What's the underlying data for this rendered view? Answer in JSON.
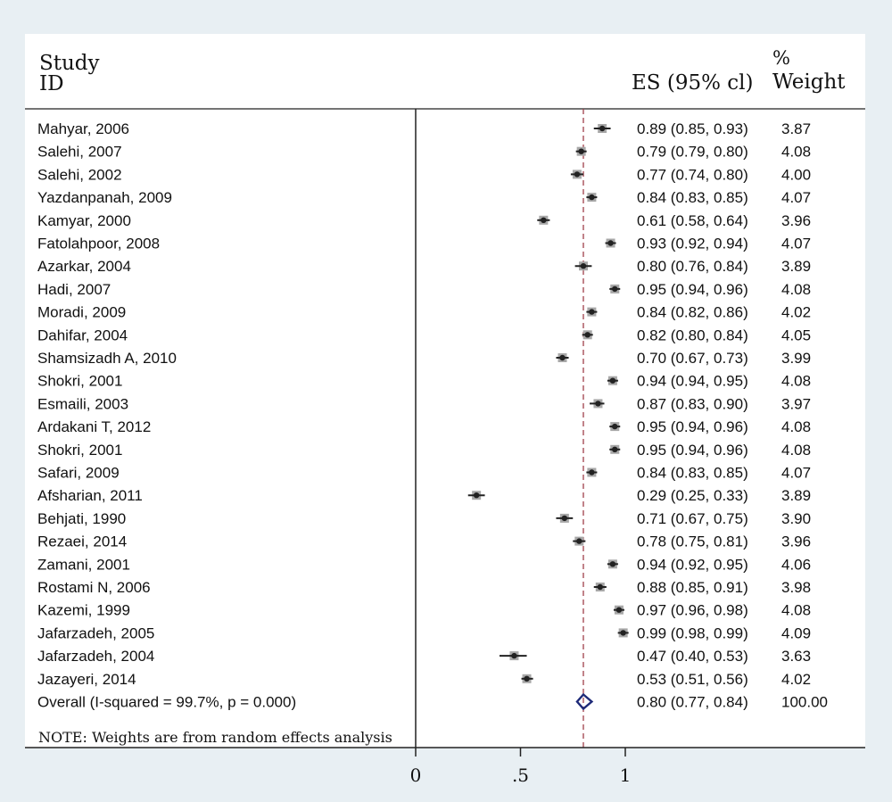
{
  "header": {
    "study_line1": "Study",
    "study_line2": "ID",
    "es_label": "ES (95% cl)",
    "weight_line1": "%",
    "weight_line2": "Weight"
  },
  "note": "NOTE: Weights are from random effects analysis",
  "colors": {
    "background": "#e8eff3",
    "panel": "#ffffff",
    "point": "#222222",
    "weight_box": "#a8a8a8",
    "overall_line": "#a0404a",
    "diamond": "#1e2a78"
  },
  "chart_data": {
    "type": "forest",
    "x_ticks": [
      "0",
      ".5",
      "1"
    ],
    "x_tick_values": [
      0,
      0.5,
      1
    ],
    "overall_es_line": 0.8,
    "studies": [
      {
        "label": "Mahyar, 2006",
        "es": 0.89,
        "lo": 0.85,
        "hi": 0.93,
        "es_text": "0.89 (0.85, 0.93)",
        "weight": "3.87"
      },
      {
        "label": "Salehi, 2007",
        "es": 0.79,
        "lo": 0.79,
        "hi": 0.8,
        "es_text": "0.79 (0.79, 0.80)",
        "weight": "4.08"
      },
      {
        "label": "Salehi, 2002",
        "es": 0.77,
        "lo": 0.74,
        "hi": 0.8,
        "es_text": "0.77 (0.74, 0.80)",
        "weight": "4.00"
      },
      {
        "label": "Yazdanpanah, 2009",
        "es": 0.84,
        "lo": 0.83,
        "hi": 0.85,
        "es_text": "0.84 (0.83, 0.85)",
        "weight": "4.07"
      },
      {
        "label": "Kamyar, 2000",
        "es": 0.61,
        "lo": 0.58,
        "hi": 0.64,
        "es_text": "0.61 (0.58, 0.64)",
        "weight": "3.96"
      },
      {
        "label": "Fatolahpoor, 2008",
        "es": 0.93,
        "lo": 0.92,
        "hi": 0.94,
        "es_text": "0.93 (0.92, 0.94)",
        "weight": "4.07"
      },
      {
        "label": "Azarkar, 2004",
        "es": 0.8,
        "lo": 0.76,
        "hi": 0.84,
        "es_text": "0.80 (0.76, 0.84)",
        "weight": "3.89"
      },
      {
        "label": "Hadi, 2007",
        "es": 0.95,
        "lo": 0.94,
        "hi": 0.96,
        "es_text": "0.95 (0.94, 0.96)",
        "weight": "4.08"
      },
      {
        "label": "Moradi, 2009",
        "es": 0.84,
        "lo": 0.82,
        "hi": 0.86,
        "es_text": "0.84 (0.82, 0.86)",
        "weight": "4.02"
      },
      {
        "label": "Dahifar, 2004",
        "es": 0.82,
        "lo": 0.8,
        "hi": 0.84,
        "es_text": "0.82 (0.80, 0.84)",
        "weight": "4.05"
      },
      {
        "label": "Shamsizadh A, 2010",
        "es": 0.7,
        "lo": 0.67,
        "hi": 0.73,
        "es_text": "0.70 (0.67, 0.73)",
        "weight": "3.99"
      },
      {
        "label": "Shokri, 2001",
        "es": 0.94,
        "lo": 0.94,
        "hi": 0.95,
        "es_text": "0.94 (0.94, 0.95)",
        "weight": "4.08"
      },
      {
        "label": "Esmaili, 2003",
        "es": 0.87,
        "lo": 0.83,
        "hi": 0.9,
        "es_text": "0.87 (0.83, 0.90)",
        "weight": "3.97"
      },
      {
        "label": "Ardakani T, 2012",
        "es": 0.95,
        "lo": 0.94,
        "hi": 0.96,
        "es_text": "0.95 (0.94, 0.96)",
        "weight": "4.08"
      },
      {
        "label": "Shokri, 2001",
        "es": 0.95,
        "lo": 0.94,
        "hi": 0.96,
        "es_text": "0.95 (0.94, 0.96)",
        "weight": "4.08"
      },
      {
        "label": "Safari, 2009",
        "es": 0.84,
        "lo": 0.83,
        "hi": 0.85,
        "es_text": "0.84 (0.83, 0.85)",
        "weight": "4.07"
      },
      {
        "label": "Afsharian, 2011",
        "es": 0.29,
        "lo": 0.25,
        "hi": 0.33,
        "es_text": "0.29 (0.25, 0.33)",
        "weight": "3.89"
      },
      {
        "label": "Behjati, 1990",
        "es": 0.71,
        "lo": 0.67,
        "hi": 0.75,
        "es_text": "0.71 (0.67, 0.75)",
        "weight": "3.90"
      },
      {
        "label": "Rezaei, 2014",
        "es": 0.78,
        "lo": 0.75,
        "hi": 0.81,
        "es_text": "0.78 (0.75, 0.81)",
        "weight": "3.96"
      },
      {
        "label": "Zamani, 2001",
        "es": 0.94,
        "lo": 0.92,
        "hi": 0.95,
        "es_text": "0.94 (0.92, 0.95)",
        "weight": "4.06"
      },
      {
        "label": "Rostami N, 2006",
        "es": 0.88,
        "lo": 0.85,
        "hi": 0.91,
        "es_text": "0.88 (0.85, 0.91)",
        "weight": "3.98"
      },
      {
        "label": "Kazemi, 1999",
        "es": 0.97,
        "lo": 0.96,
        "hi": 0.98,
        "es_text": "0.97 (0.96, 0.98)",
        "weight": "4.08"
      },
      {
        "label": "Jafarzadeh, 2005",
        "es": 0.99,
        "lo": 0.98,
        "hi": 0.99,
        "es_text": "0.99 (0.98, 0.99)",
        "weight": "4.09"
      },
      {
        "label": "Jafarzadeh, 2004",
        "es": 0.47,
        "lo": 0.4,
        "hi": 0.53,
        "es_text": "0.47 (0.40, 0.53)",
        "weight": "3.63"
      },
      {
        "label": "Jazayeri, 2014",
        "es": 0.53,
        "lo": 0.51,
        "hi": 0.56,
        "es_text": "0.53 (0.51, 0.56)",
        "weight": "4.02"
      }
    ],
    "overall": {
      "label": "Overall  (I-squared = 99.7%, p = 0.000)",
      "es": 0.8,
      "lo": 0.77,
      "hi": 0.84,
      "es_text": "0.80 (0.77, 0.84)",
      "weight": "100.00"
    }
  }
}
